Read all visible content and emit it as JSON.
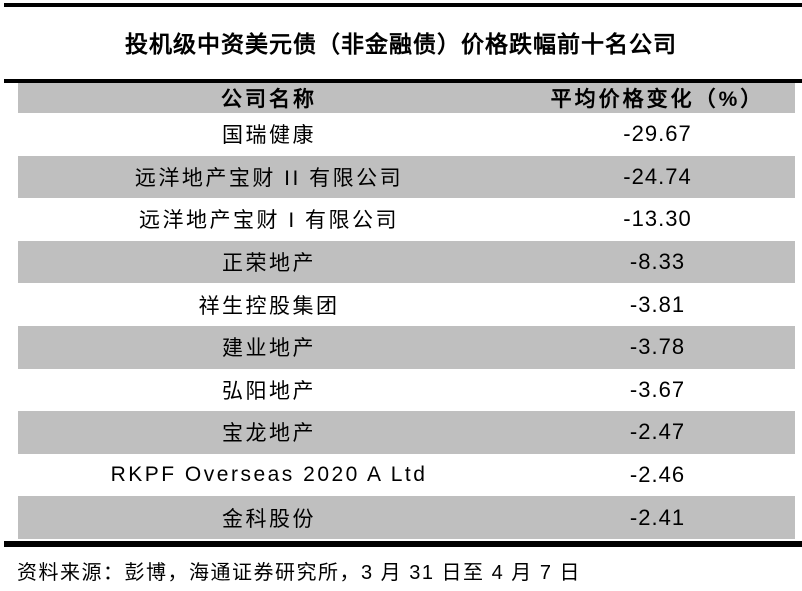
{
  "page": {
    "title": "投机级中资美元债（非金融债）价格跌幅前十名公司"
  },
  "table": {
    "header": {
      "company": "公司名称",
      "change": "平均价格变化（%）"
    },
    "rows": [
      {
        "company": "国瑞健康",
        "change": "-29.67"
      },
      {
        "company": "远洋地产宝财 II 有限公司",
        "change": "-24.74"
      },
      {
        "company": "远洋地产宝财 I 有限公司",
        "change": "-13.30"
      },
      {
        "company": "正荣地产",
        "change": "-8.33"
      },
      {
        "company": "祥生控股集团",
        "change": "-3.81"
      },
      {
        "company": "建业地产",
        "change": "-3.78"
      },
      {
        "company": "弘阳地产",
        "change": "-3.67"
      },
      {
        "company": "宝龙地产",
        "change": "-2.47"
      },
      {
        "company": "RKPF Overseas 2020 A Ltd",
        "change": "-2.46"
      },
      {
        "company": "金科股份",
        "change": "-2.41"
      }
    ]
  },
  "footer": {
    "source": "资料来源：彭博，海通证券研究所，3 月 31 日至 4 月 7 日"
  },
  "chart_data": {
    "type": "table",
    "title": "投机级中资美元债（非金融债）价格跌幅前十名公司",
    "columns": [
      "公司名称",
      "平均价格变化（%）"
    ],
    "companies": [
      "国瑞健康",
      "远洋地产宝财 II 有限公司",
      "远洋地产宝财 I 有限公司",
      "正荣地产",
      "祥生控股集团",
      "建业地产",
      "弘阳地产",
      "宝龙地产",
      "RKPF Overseas 2020 A Ltd",
      "金科股份"
    ],
    "avg_price_change_pct": [
      -29.67,
      -24.74,
      -13.3,
      -8.33,
      -3.81,
      -3.78,
      -3.67,
      -2.47,
      -2.46,
      -2.41
    ]
  },
  "colors": {
    "row_shading": "#bfbfbf",
    "rule": "#000000",
    "text": "#000000",
    "background": "#ffffff"
  }
}
